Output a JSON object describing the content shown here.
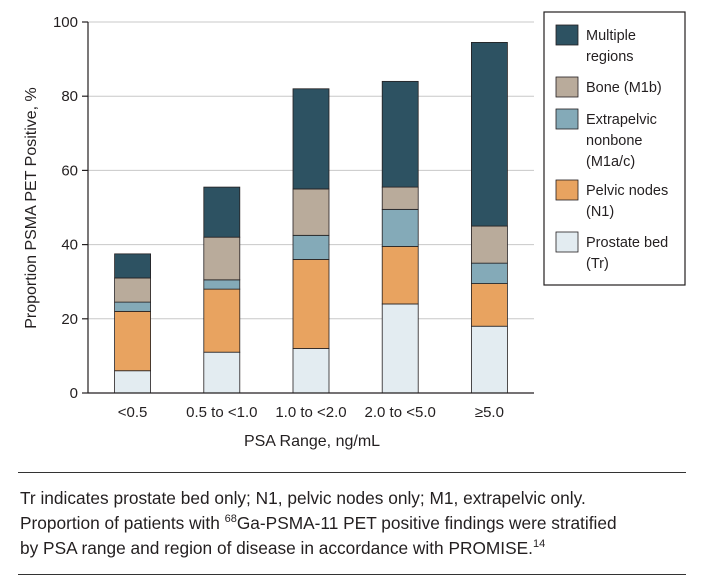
{
  "chart_data": {
    "type": "bar",
    "stacked": true,
    "categories": [
      "<0.5",
      "0.5 to <1.0",
      "1.0 to <2.0",
      "2.0 to <5.0",
      "≥5.0"
    ],
    "series": [
      {
        "name": "Prostate bed (Tr)",
        "color": "#e3ecf1",
        "values": [
          6,
          11,
          12,
          24,
          18
        ]
      },
      {
        "name": "Pelvic nodes (N1)",
        "color": "#e8a360",
        "values": [
          16,
          17,
          24,
          15.5,
          11.5
        ]
      },
      {
        "name": "Extrapelvic nonbone (M1a/c)",
        "color": "#84aab8",
        "values": [
          2.5,
          2.5,
          6.5,
          10,
          5.5
        ]
      },
      {
        "name": "Bone (M1b)",
        "color": "#b9ab9b",
        "values": [
          6.5,
          11.5,
          12.5,
          6,
          10
        ]
      },
      {
        "name": "Multiple regions",
        "color": "#2d5262",
        "values": [
          6.5,
          13.5,
          27,
          28.5,
          49.5
        ]
      }
    ],
    "xlabel": "PSA Range, ng/mL",
    "ylabel": "Proportion PSMA PET Positive, %",
    "ylim": [
      0,
      100
    ],
    "yticks": [
      0,
      20,
      40,
      60,
      80,
      100
    ],
    "grid": true,
    "legend_position": "right"
  },
  "legend": [
    {
      "lines": [
        "Multiple",
        "regions"
      ],
      "color": "#2d5262"
    },
    {
      "lines": [
        "Bone (M1b)"
      ],
      "color": "#b9ab9b"
    },
    {
      "lines": [
        "Extrapelvic",
        "nonbone",
        "(M1a/c)"
      ],
      "color": "#84aab8"
    },
    {
      "lines": [
        "Pelvic nodes",
        "(N1)"
      ],
      "color": "#e8a360"
    },
    {
      "lines": [
        "Prostate bed",
        "(Tr)"
      ],
      "color": "#e3ecf1"
    }
  ],
  "caption": {
    "line1": "Tr indicates prostate bed only; N1, pelvic nodes only; M1, extrapelvic only.",
    "line2_pre": "Proportion of patients with ",
    "line2_sup": "68",
    "line2_post": "Ga-PSMA-11 PET positive findings were stratified",
    "line3_pre": "by PSA range and region of disease in accordance with PROMISE.",
    "line3_sup": "14"
  }
}
